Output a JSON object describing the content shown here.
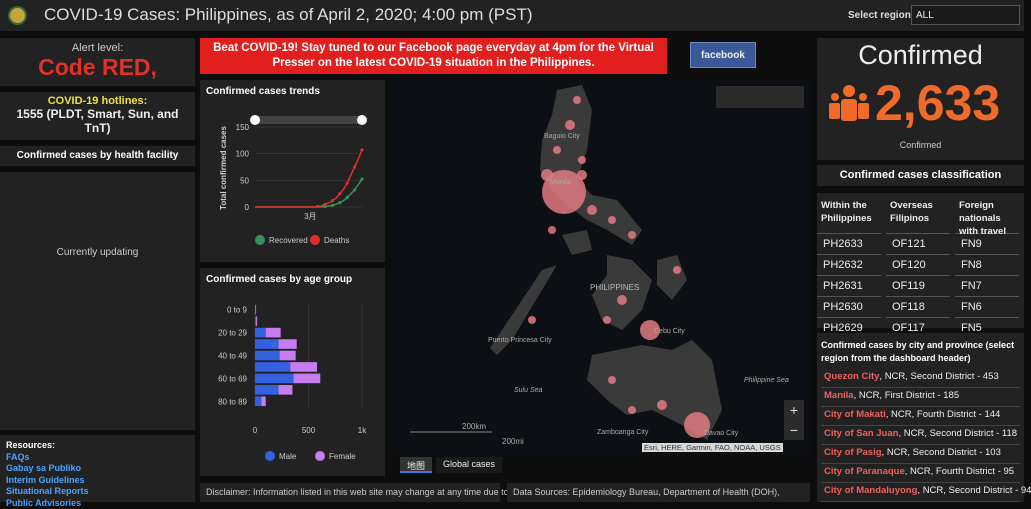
{
  "header": {
    "title": "COVID-19 Cases: Philippines, as of April 2, 2020; 4:00 pm (PST)",
    "region_label": "Select region:",
    "region_value": "ALL"
  },
  "alert": {
    "label": "Alert level:",
    "value": "Code RED,"
  },
  "hotlines": {
    "title": "COVID-19 hotlines:",
    "text": "1555 (PLDT, Smart, Sun, and TnT)"
  },
  "facility": {
    "title": "Confirmed cases by health facility",
    "status": "Currently updating"
  },
  "resources": {
    "title": "Resources:",
    "links": [
      "FAQs",
      "Gabay sa Publiko",
      "Interim Guidelines",
      "Situational Reports",
      "Public Advisories"
    ]
  },
  "banner": "Beat COVID-19! Stay tuned to our Facebook page everyday at 4pm for the Virtual Presser on the latest COVID-19 situation in the Philippines.",
  "facebook": "facebook",
  "trend_chart": {
    "type": "line",
    "title": "Confirmed cases trends",
    "y_label": "Total confirmed cases",
    "categories": [
      null,
      null,
      null,
      null,
      null,
      null,
      null,
      null,
      null,
      null,
      null,
      null,
      null,
      null,
      null,
      "3月",
      null,
      null,
      null,
      null,
      null,
      null,
      null,
      null,
      null,
      null,
      null,
      null,
      null,
      null
    ],
    "series": [
      {
        "name": "Recovered",
        "color": "#3a8f5a",
        "values": [
          0,
          0,
          0,
          0,
          0,
          0,
          0,
          0,
          0,
          0,
          0,
          0,
          0,
          0,
          0,
          0,
          0,
          0,
          0,
          1,
          2,
          3,
          5,
          8,
          12,
          18,
          25,
          32,
          42,
          52
        ]
      },
      {
        "name": "Deaths",
        "color": "#e0302a",
        "values": [
          0,
          0,
          0,
          0,
          0,
          0,
          0,
          0,
          0,
          0,
          0,
          0,
          0,
          0,
          0,
          0,
          0,
          1,
          2,
          5,
          8,
          12,
          17,
          25,
          33,
          45,
          60,
          75,
          90,
          107
        ]
      }
    ],
    "ylim": [
      0,
      150
    ],
    "yticks": [
      0,
      50,
      100,
      150
    ]
  },
  "age_chart": {
    "type": "bar",
    "title": "Confirmed cases by age group",
    "orientation": "horizontal",
    "stacked": true,
    "categories": [
      "0 to 9",
      null,
      "20 to 29",
      null,
      "40 to 49",
      null,
      "60 to 69",
      null,
      "80 to 89"
    ],
    "series": [
      {
        "name": "Male",
        "color": "#3461e0",
        "values": [
          5,
          10,
          100,
          220,
          230,
          330,
          360,
          220,
          60
        ]
      },
      {
        "name": "Female",
        "color": "#c77df0",
        "values": [
          5,
          10,
          140,
          170,
          150,
          250,
          250,
          130,
          40
        ]
      }
    ],
    "xlim": [
      0,
      1000
    ],
    "xticks": [
      0,
      500,
      {
        "value": 1000,
        "label": "1k"
      }
    ]
  },
  "map": {
    "labels": [
      "Baguio City",
      "Manila",
      "PHILIPPINES",
      "Cebu City",
      "Puerto Princesa City",
      "Sulu Sea",
      "Philippine Sea",
      "Zamboanga City",
      "Davao City"
    ],
    "scale_km": "200km",
    "scale_mi": "200mi",
    "attribution": "Esri, HERE, Garmin, FAO, NOAA, USGS",
    "tabs": [
      "地图",
      "Global cases"
    ]
  },
  "confirmed": {
    "title": "Confirmed",
    "value": "2,633",
    "label": "Confirmed"
  },
  "classification": {
    "title": "Confirmed cases classification",
    "columns": [
      {
        "header": "Within the Philippines",
        "items": [
          "PH2633",
          "PH2632",
          "PH2631",
          "PH2630",
          "PH2629"
        ]
      },
      {
        "header": "Overseas Filipinos",
        "items": [
          "OF121",
          "OF120",
          "OF119",
          "OF118",
          "OF117"
        ]
      },
      {
        "header": "Foreign nationals with travel",
        "items": [
          "FN9",
          "FN8",
          "FN7",
          "FN6",
          "FN5"
        ]
      }
    ]
  },
  "cities": {
    "title": "Confirmed cases by city and province (select region from the dashboard header)",
    "items": [
      {
        "city": "Quezon City",
        "detail": ", NCR, Second District - 453"
      },
      {
        "city": "Manila",
        "detail": ", NCR, First District - 185"
      },
      {
        "city": "City of Makati",
        "detail": ", NCR, Fourth District - 144"
      },
      {
        "city": "City of San Juan",
        "detail": ", NCR, Second District - 118"
      },
      {
        "city": "City of Pasig",
        "detail": ", NCR, Second District - 103"
      },
      {
        "city": "City of Paranaque",
        "detail": ", NCR, Fourth District - 95"
      },
      {
        "city": "City of Mandaluyong",
        "detail": ", NCR, Second District - 94"
      }
    ]
  },
  "footer": {
    "disclaimer": "Disclaimer: Information listed in this web site may change at any time due to",
    "sources": "Data Sources: Epidemiology Bureau, Department of Health (DOH),"
  }
}
